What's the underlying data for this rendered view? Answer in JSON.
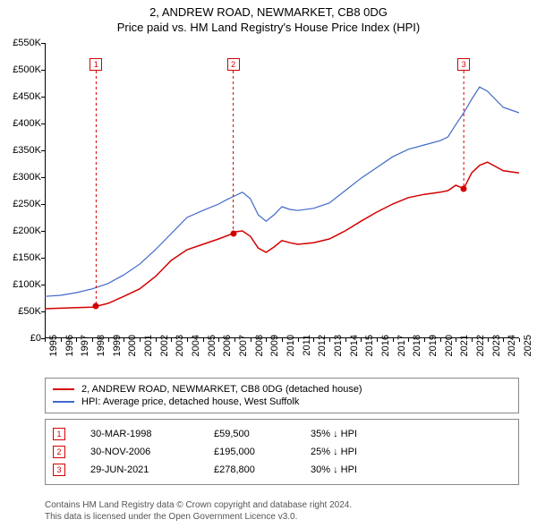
{
  "title": "2, ANDREW ROAD, NEWMARKET, CB8 0DG",
  "subtitle": "Price paid vs. HM Land Registry's House Price Index (HPI)",
  "chart": {
    "type": "line",
    "background_color": "#ffffff",
    "axis_color": "#000000",
    "x_years": [
      1995,
      1996,
      1997,
      1998,
      1999,
      2000,
      2001,
      2002,
      2003,
      2004,
      2005,
      2006,
      2007,
      2008,
      2009,
      2010,
      2011,
      2012,
      2013,
      2014,
      2015,
      2016,
      2017,
      2018,
      2019,
      2020,
      2021,
      2022,
      2023,
      2024,
      2025
    ],
    "ylim": [
      0,
      550000
    ],
    "ytick_step": 50000,
    "ytick_labels": [
      "£0",
      "£50K",
      "£100K",
      "£150K",
      "£200K",
      "£250K",
      "£300K",
      "£350K",
      "£400K",
      "£450K",
      "£500K",
      "£550K"
    ],
    "label_fontsize": 11,
    "series": [
      {
        "name": "property",
        "label": "2, ANDREW ROAD, NEWMARKET, CB8 0DG (detached house)",
        "color": "#d40000",
        "line_width": 1.5,
        "points": [
          [
            1995.0,
            55000
          ],
          [
            1996.0,
            56000
          ],
          [
            1997.0,
            57000
          ],
          [
            1998.0,
            58000
          ],
          [
            1998.25,
            59500
          ],
          [
            1999.0,
            65000
          ],
          [
            2000.0,
            78000
          ],
          [
            2001.0,
            92000
          ],
          [
            2002.0,
            115000
          ],
          [
            2003.0,
            145000
          ],
          [
            2004.0,
            165000
          ],
          [
            2005.0,
            175000
          ],
          [
            2006.0,
            185000
          ],
          [
            2006.9,
            195000
          ],
          [
            2007.0,
            198000
          ],
          [
            2007.5,
            200000
          ],
          [
            2008.0,
            190000
          ],
          [
            2008.5,
            168000
          ],
          [
            2009.0,
            160000
          ],
          [
            2009.5,
            170000
          ],
          [
            2010.0,
            182000
          ],
          [
            2010.5,
            178000
          ],
          [
            2011.0,
            175000
          ],
          [
            2012.0,
            178000
          ],
          [
            2013.0,
            185000
          ],
          [
            2014.0,
            200000
          ],
          [
            2015.0,
            218000
          ],
          [
            2016.0,
            235000
          ],
          [
            2017.0,
            250000
          ],
          [
            2018.0,
            262000
          ],
          [
            2019.0,
            268000
          ],
          [
            2020.0,
            272000
          ],
          [
            2020.5,
            275000
          ],
          [
            2021.0,
            285000
          ],
          [
            2021.5,
            278800
          ],
          [
            2022.0,
            308000
          ],
          [
            2022.5,
            322000
          ],
          [
            2023.0,
            328000
          ],
          [
            2023.5,
            320000
          ],
          [
            2024.0,
            312000
          ],
          [
            2024.5,
            310000
          ],
          [
            2025.0,
            308000
          ]
        ]
      },
      {
        "name": "hpi",
        "label": "HPI: Average price, detached house, West Suffolk",
        "color": "#4169c8",
        "line_width": 1.2,
        "points": [
          [
            1995.0,
            78000
          ],
          [
            1996.0,
            80000
          ],
          [
            1997.0,
            85000
          ],
          [
            1998.0,
            92000
          ],
          [
            1999.0,
            102000
          ],
          [
            2000.0,
            118000
          ],
          [
            2001.0,
            138000
          ],
          [
            2002.0,
            165000
          ],
          [
            2003.0,
            195000
          ],
          [
            2004.0,
            225000
          ],
          [
            2005.0,
            238000
          ],
          [
            2006.0,
            250000
          ],
          [
            2006.5,
            258000
          ],
          [
            2007.0,
            265000
          ],
          [
            2007.5,
            272000
          ],
          [
            2008.0,
            260000
          ],
          [
            2008.5,
            230000
          ],
          [
            2009.0,
            218000
          ],
          [
            2009.5,
            230000
          ],
          [
            2010.0,
            245000
          ],
          [
            2010.5,
            240000
          ],
          [
            2011.0,
            238000
          ],
          [
            2012.0,
            242000
          ],
          [
            2013.0,
            252000
          ],
          [
            2014.0,
            275000
          ],
          [
            2015.0,
            298000
          ],
          [
            2016.0,
            318000
          ],
          [
            2017.0,
            338000
          ],
          [
            2018.0,
            352000
          ],
          [
            2019.0,
            360000
          ],
          [
            2020.0,
            368000
          ],
          [
            2020.5,
            375000
          ],
          [
            2021.0,
            398000
          ],
          [
            2021.5,
            420000
          ],
          [
            2022.0,
            445000
          ],
          [
            2022.5,
            468000
          ],
          [
            2023.0,
            460000
          ],
          [
            2023.5,
            445000
          ],
          [
            2024.0,
            430000
          ],
          [
            2024.5,
            425000
          ],
          [
            2025.0,
            420000
          ]
        ]
      }
    ],
    "sale_points": [
      {
        "id": "1",
        "year": 1998.25,
        "price": 59500,
        "color": "#d40000"
      },
      {
        "id": "2",
        "year": 2006.92,
        "price": 195000,
        "color": "#d40000"
      },
      {
        "id": "3",
        "year": 2021.5,
        "price": 278800,
        "color": "#d40000"
      }
    ],
    "marker_box_positions": [
      {
        "id": "1",
        "year": 1998.25,
        "y_value": 510000,
        "color": "#d40000"
      },
      {
        "id": "2",
        "year": 2006.92,
        "y_value": 510000,
        "color": "#d40000"
      },
      {
        "id": "3",
        "year": 2021.5,
        "y_value": 510000,
        "color": "#d40000"
      }
    ]
  },
  "legend": {
    "border_color": "#888888",
    "fontsize": 11
  },
  "events": [
    {
      "id": "1",
      "date": "30-MAR-1998",
      "price": "£59,500",
      "diff": "35% ↓ HPI",
      "color": "#d40000"
    },
    {
      "id": "2",
      "date": "30-NOV-2006",
      "price": "£195,000",
      "diff": "25% ↓ HPI",
      "color": "#d40000"
    },
    {
      "id": "3",
      "date": "29-JUN-2021",
      "price": "£278,800",
      "diff": "30% ↓ HPI",
      "color": "#d40000"
    }
  ],
  "footer": {
    "line1": "Contains HM Land Registry data © Crown copyright and database right 2024.",
    "line2": "This data is licensed under the Open Government Licence v3.0.",
    "color": "#555555"
  }
}
